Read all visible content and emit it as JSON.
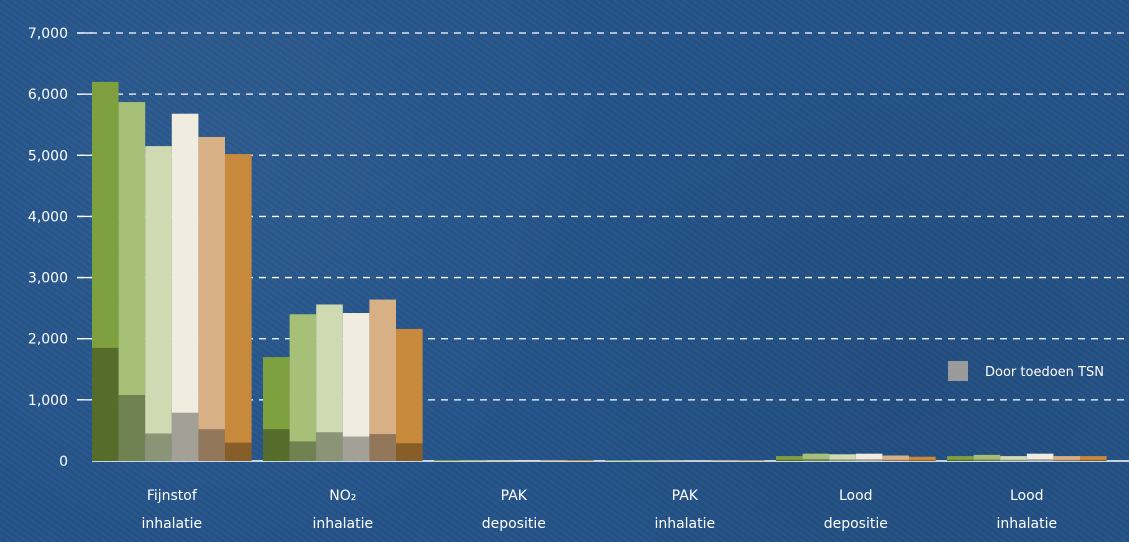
{
  "chart_data": {
    "type": "bar",
    "categories": [
      [
        "Fijnstof",
        "inhalatie"
      ],
      [
        "NO₂",
        "inhalatie"
      ],
      [
        "PAK",
        "depositie"
      ],
      [
        "PAK",
        "inhalatie"
      ],
      [
        "Lood",
        "depositie"
      ],
      [
        "Lood",
        "inhalatie"
      ]
    ],
    "series": [
      {
        "color": "#7ea03e",
        "values": [
          6200,
          1700,
          15,
          10,
          80,
          80
        ],
        "tsn": [
          1850,
          520,
          3,
          2,
          20,
          20
        ]
      },
      {
        "color": "#a6c078",
        "values": [
          5870,
          2400,
          15,
          10,
          120,
          100
        ],
        "tsn": [
          1080,
          320,
          3,
          2,
          30,
          25
        ]
      },
      {
        "color": "#cfdab2",
        "values": [
          5150,
          2560,
          15,
          10,
          110,
          80
        ],
        "tsn": [
          450,
          470,
          3,
          2,
          25,
          20
        ]
      },
      {
        "color": "#f1ece0",
        "values": [
          5680,
          2420,
          15,
          10,
          120,
          120
        ],
        "tsn": [
          790,
          400,
          3,
          2,
          30,
          30
        ]
      },
      {
        "color": "#d8b086",
        "values": [
          5300,
          2640,
          15,
          10,
          90,
          80
        ],
        "tsn": [
          520,
          440,
          3,
          2,
          20,
          20
        ]
      },
      {
        "color": "#c78a3c",
        "values": [
          5020,
          2160,
          15,
          10,
          70,
          80
        ],
        "tsn": [
          300,
          290,
          3,
          2,
          15,
          20
        ]
      }
    ],
    "y_ticks": [
      "0",
      "1,000",
      "2,000",
      "3,000",
      "4,000",
      "5,000",
      "6,000",
      "7,000"
    ],
    "ylim": [
      0,
      7000
    ],
    "grid": "dashed horizontal",
    "legend": {
      "label": "Door toedoen TSN",
      "color": "#9a9a9a",
      "placement": "right"
    }
  }
}
